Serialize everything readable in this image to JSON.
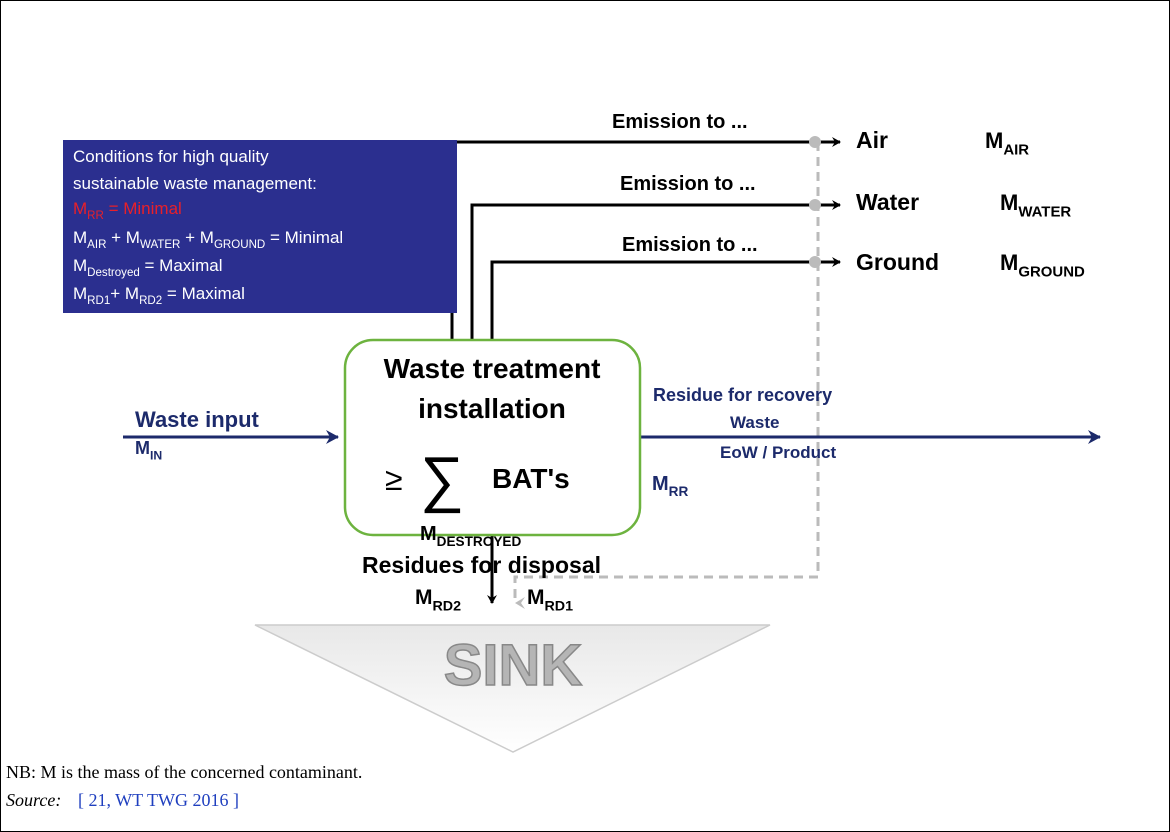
{
  "conditions": {
    "title": [
      "Conditions for high quality",
      "sustainable waste management:"
    ],
    "lines": [
      [
        {
          "t": "M"
        },
        {
          "sub": "RR"
        },
        {
          "t": " = Minimal"
        }
      ],
      [
        {
          "t": "M"
        },
        {
          "sub": "AIR"
        },
        {
          "t": " + M"
        },
        {
          "sub": "WATER"
        },
        {
          "t": " + M"
        },
        {
          "sub": "GROUND"
        },
        {
          "t": " = Minimal"
        }
      ],
      [
        {
          "t": "M"
        },
        {
          "sub": "Destroyed"
        },
        {
          "t": " = Maximal"
        }
      ],
      [
        {
          "t": "M"
        },
        {
          "sub": "RD1"
        },
        {
          "t": "+ M"
        },
        {
          "sub": "RD2"
        },
        {
          "t": " = Maximal"
        }
      ]
    ]
  },
  "emissions": [
    {
      "label": "Emission to ...",
      "target": "Air",
      "mass": [
        {
          "t": "M"
        },
        {
          "sub": "AIR"
        }
      ]
    },
    {
      "label": "Emission to ...",
      "target": "Water",
      "mass": [
        {
          "t": "M"
        },
        {
          "sub": "WATER"
        }
      ]
    },
    {
      "label": "Emission to ...",
      "target": "Ground",
      "mass": [
        {
          "t": "M"
        },
        {
          "sub": "GROUND"
        }
      ]
    }
  ],
  "installation": {
    "title": [
      "Waste treatment",
      "installation"
    ],
    "symbol": "≥",
    "sum": "∑",
    "bat": "BAT's",
    "mass": [
      {
        "t": "M"
      },
      {
        "sub": "DESTROYED"
      }
    ]
  },
  "input": {
    "label": "Waste input",
    "mass": [
      {
        "t": "M"
      },
      {
        "sub": "IN"
      }
    ]
  },
  "recovery": {
    "label": "Residue for recovery",
    "lines": [
      "Waste",
      "EoW / Product"
    ],
    "mass": [
      {
        "t": "M"
      },
      {
        "sub": "RR"
      }
    ]
  },
  "disposal": {
    "label": "Residues for disposal",
    "mass2": [
      {
        "t": "M"
      },
      {
        "sub": "RD2"
      }
    ],
    "mass1": [
      {
        "t": "M"
      },
      {
        "sub": "RD1"
      }
    ]
  },
  "sink": "SINK",
  "note": "NB: M is the mass of the concerned contaminant.",
  "source": {
    "label": "Source:",
    "ref": "[ 21, WT TWG 2016 ]"
  }
}
